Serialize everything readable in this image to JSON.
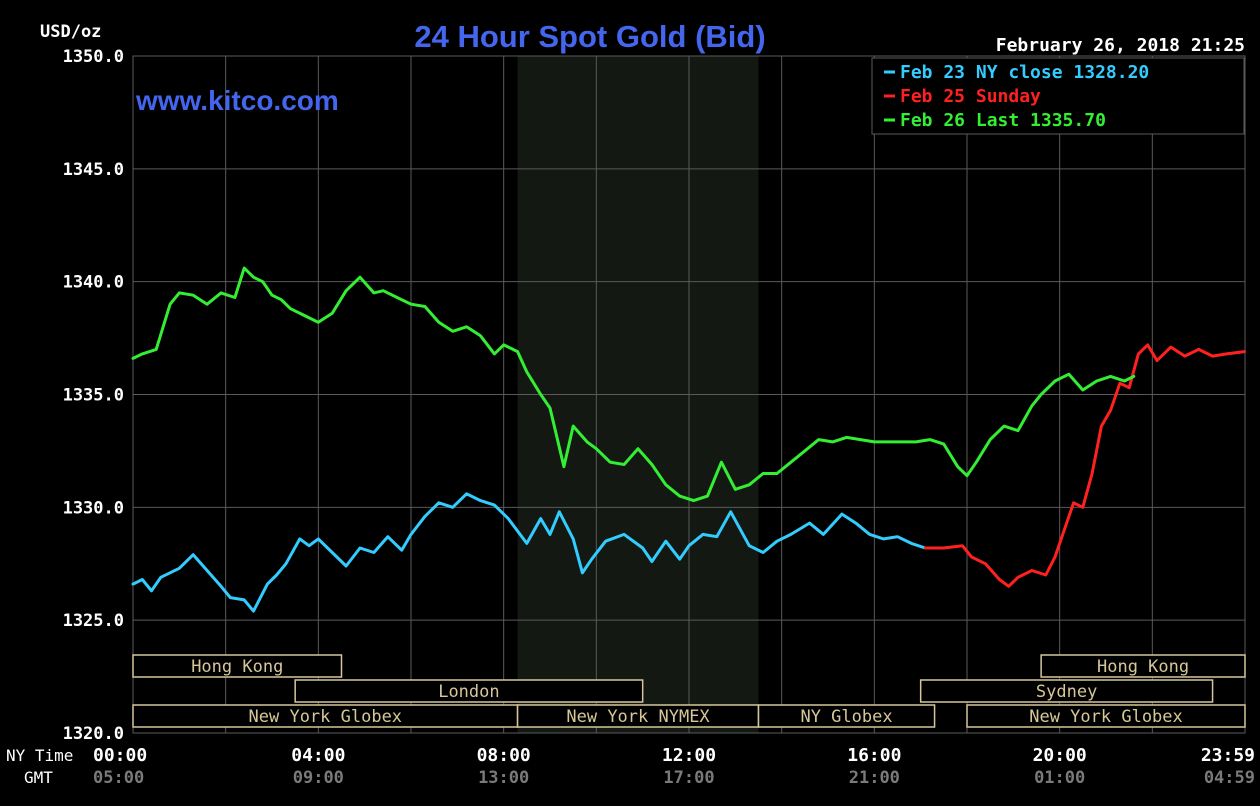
{
  "header": {
    "unit": "USD/oz",
    "title": "24 Hour Spot Gold (Bid)",
    "timestamp": "February 26, 2018 21:25",
    "watermark": "www.kitco.com"
  },
  "legend": {
    "items": [
      {
        "label": "Feb 23 NY close 1328.20",
        "color": "#33ccff"
      },
      {
        "label": "Feb 25 Sunday",
        "color": "#ff2020"
      },
      {
        "label": "Feb 26 Last 1335.70",
        "color": "#33ee33"
      }
    ]
  },
  "axis_captions": {
    "ny_time": "NY Time",
    "gmt": "GMT"
  },
  "markets": [
    {
      "label": "Hong Kong",
      "start": 0,
      "end": 4.5,
      "row": 0
    },
    {
      "label": "Hong Kong",
      "start": 19.6,
      "end": 24,
      "row": 0
    },
    {
      "label": "London",
      "start": 3.5,
      "end": 11.0,
      "row": 1
    },
    {
      "label": "Sydney",
      "start": 17.0,
      "end": 23.3,
      "row": 1
    },
    {
      "label": "New York Globex",
      "start": 0,
      "end": 8.3,
      "row": 2
    },
    {
      "label": "New York NYMEX",
      "start": 8.3,
      "end": 13.5,
      "row": 2
    },
    {
      "label": "NY Globex",
      "start": 13.5,
      "end": 17.3,
      "row": 2
    },
    {
      "label": "New York Globex",
      "start": 18.0,
      "end": 24,
      "row": 2
    }
  ],
  "colors": {
    "background": "#000000",
    "grid": "#5a5a5a",
    "title": "#4466ee",
    "axis_text": "#ffffff",
    "gmt_text": "#7a7a7a",
    "market_box": "#d6c79a",
    "shade": "#131813"
  },
  "chart_data": {
    "type": "line",
    "title": "24 Hour Spot Gold (Bid)",
    "ylabel": "USD/oz",
    "xlabel": "NY Time",
    "ylim": [
      1320,
      1350
    ],
    "xlim": [
      0,
      24
    ],
    "y_ticks": [
      "1320.0",
      "1325.0",
      "1330.0",
      "1335.0",
      "1340.0",
      "1345.0",
      "1350.0"
    ],
    "x_ticks": [
      "00:00",
      "04:00",
      "08:00",
      "12:00",
      "16:00",
      "20:00",
      "23:59"
    ],
    "x_ticks_gmt": [
      "05:00",
      "09:00",
      "13:00",
      "17:00",
      "21:00",
      "01:00",
      "04:59"
    ],
    "shaded_hours": [
      8.3,
      13.5
    ],
    "series": [
      {
        "name": "Feb 23 NY close 1328.20",
        "color": "#33ccff",
        "x": [
          0,
          0.2,
          0.4,
          0.6,
          1.0,
          1.3,
          1.6,
          1.9,
          2.1,
          2.4,
          2.6,
          2.9,
          3.1,
          3.3,
          3.6,
          3.8,
          4.0,
          4.3,
          4.6,
          4.9,
          5.2,
          5.5,
          5.8,
          6.0,
          6.3,
          6.6,
          6.9,
          7.2,
          7.5,
          7.8,
          8.1,
          8.5,
          8.8,
          9.0,
          9.2,
          9.5,
          9.7,
          9.9,
          10.2,
          10.6,
          11.0,
          11.2,
          11.5,
          11.8,
          12.0,
          12.3,
          12.6,
          12.9,
          13.3,
          13.6,
          13.9,
          14.2,
          14.6,
          14.9,
          15.3,
          15.6,
          15.9,
          16.2,
          16.5,
          16.8,
          17.1
        ],
        "y": [
          1326.6,
          1326.8,
          1326.3,
          1326.9,
          1327.3,
          1327.9,
          1327.2,
          1326.5,
          1326.0,
          1325.9,
          1325.4,
          1326.6,
          1327.0,
          1327.5,
          1328.6,
          1328.3,
          1328.6,
          1328.0,
          1327.4,
          1328.2,
          1328.0,
          1328.7,
          1328.1,
          1328.8,
          1329.6,
          1330.2,
          1330.0,
          1330.6,
          1330.3,
          1330.1,
          1329.5,
          1328.4,
          1329.5,
          1328.8,
          1329.8,
          1328.6,
          1327.1,
          1327.7,
          1328.5,
          1328.8,
          1328.2,
          1327.6,
          1328.5,
          1327.7,
          1328.3,
          1328.8,
          1328.7,
          1329.8,
          1328.3,
          1328.0,
          1328.5,
          1328.8,
          1329.3,
          1328.8,
          1329.7,
          1329.3,
          1328.8,
          1328.6,
          1328.7,
          1328.4,
          1328.2
        ]
      },
      {
        "name": "Feb 25 Sunday",
        "color": "#ff2020",
        "x": [
          17.1,
          17.5,
          17.9,
          18.1,
          18.4,
          18.7,
          18.9,
          19.1,
          19.4,
          19.7,
          19.9,
          20.1,
          20.3,
          20.5,
          20.7,
          20.9,
          21.1,
          21.3,
          21.5,
          21.7,
          21.9,
          22.1,
          22.4,
          22.7,
          23.0,
          23.3,
          23.6,
          23.99
        ],
        "y": [
          1328.2,
          1328.2,
          1328.3,
          1327.8,
          1327.5,
          1326.8,
          1326.5,
          1326.9,
          1327.2,
          1327.0,
          1327.8,
          1329.0,
          1330.2,
          1330.0,
          1331.5,
          1333.6,
          1334.3,
          1335.5,
          1335.3,
          1336.8,
          1337.2,
          1336.5,
          1337.1,
          1336.7,
          1337.0,
          1336.7,
          1336.8,
          1336.9
        ]
      },
      {
        "name": "Feb 26 Last 1335.70",
        "color": "#33ee33",
        "x": [
          0,
          0.2,
          0.5,
          0.8,
          1.0,
          1.3,
          1.6,
          1.9,
          2.2,
          2.4,
          2.6,
          2.8,
          3.0,
          3.2,
          3.4,
          3.7,
          4.0,
          4.3,
          4.6,
          4.9,
          5.2,
          5.4,
          5.7,
          6.0,
          6.3,
          6.6,
          6.9,
          7.2,
          7.5,
          7.8,
          8.0,
          8.3,
          8.5,
          8.8,
          9.0,
          9.3,
          9.5,
          9.8,
          10.0,
          10.3,
          10.6,
          10.9,
          11.2,
          11.5,
          11.8,
          12.1,
          12.4,
          12.7,
          13.0,
          13.3,
          13.6,
          13.9,
          14.2,
          14.5,
          14.8,
          15.1,
          15.4,
          15.7,
          16.0,
          16.3,
          16.6,
          16.9,
          17.2,
          17.5,
          17.8,
          18.0,
          18.2,
          18.5,
          18.8,
          19.1,
          19.4,
          19.6,
          19.9,
          20.2,
          20.5,
          20.8,
          21.1,
          21.4,
          21.6
        ],
        "y": [
          1336.6,
          1336.8,
          1337.0,
          1339.0,
          1339.5,
          1339.4,
          1339.0,
          1339.5,
          1339.3,
          1340.6,
          1340.2,
          1340.0,
          1339.4,
          1339.2,
          1338.8,
          1338.5,
          1338.2,
          1338.6,
          1339.6,
          1340.2,
          1339.5,
          1339.6,
          1339.3,
          1339.0,
          1338.9,
          1338.2,
          1337.8,
          1338.0,
          1337.6,
          1336.8,
          1337.2,
          1336.9,
          1336.0,
          1335.0,
          1334.4,
          1331.8,
          1333.6,
          1332.9,
          1332.6,
          1332.0,
          1331.9,
          1332.6,
          1331.9,
          1331.0,
          1330.5,
          1330.3,
          1330.5,
          1332.0,
          1330.8,
          1331.0,
          1331.5,
          1331.5,
          1332.0,
          1332.5,
          1333.0,
          1332.9,
          1333.1,
          1333.0,
          1332.9,
          1332.9,
          1332.9,
          1332.9,
          1333.0,
          1332.8,
          1331.8,
          1331.4,
          1332.0,
          1333.0,
          1333.6,
          1333.4,
          1334.5,
          1335.0,
          1335.6,
          1335.9,
          1335.2,
          1335.6,
          1335.8,
          1335.6,
          1335.8
        ]
      }
    ]
  }
}
